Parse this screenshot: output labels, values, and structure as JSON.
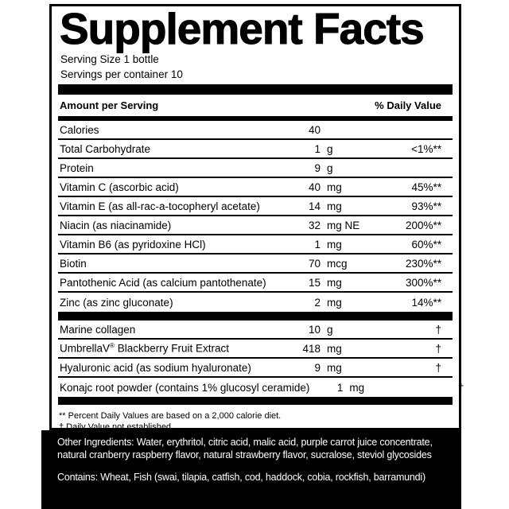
{
  "label": {
    "title": "Supplement Facts",
    "serving_size": "Serving Size 1 bottle",
    "servings_per_container": "Servings per container 10",
    "column_headers": {
      "left": "Amount per Serving",
      "right": "% Daily Value"
    },
    "rows": [
      {
        "name": "Calories",
        "amount": "40",
        "unit": "",
        "dv": ""
      },
      {
        "name": "Total Carbohydrate",
        "amount": "1",
        "unit": "g",
        "dv": "<1%**"
      },
      {
        "name": "Protein",
        "amount": "9",
        "unit": "g",
        "dv": ""
      },
      {
        "name": "Vitamin C (ascorbic acid)",
        "amount": "40",
        "unit": "mg",
        "dv": "45%**"
      },
      {
        "name": "Vitamin E (as all-rac-a-tocopheryl acetate)",
        "amount": "14",
        "unit": "mg",
        "dv": "93%**"
      },
      {
        "name": "Niacin (as niacinamide)",
        "amount": "32",
        "unit": "mg NE",
        "dv": "200%**"
      },
      {
        "name": "Vitamin B6 (as pyridoxine HCl)",
        "amount": "1",
        "unit": "mg",
        "dv": "60%**"
      },
      {
        "name": "Biotin",
        "amount": "70",
        "unit": "mcg",
        "dv": "230%**"
      },
      {
        "name": "Pantothenic Acid (as calcium pantothenate)",
        "amount": "15",
        "unit": "mg",
        "dv": "300%**"
      },
      {
        "name": "Zinc (as zinc gluconate)",
        "amount": "2",
        "unit": "mg",
        "dv": "14%**"
      }
    ],
    "rows2": [
      {
        "name": "Marine collagen",
        "amount": "10",
        "unit": "g",
        "dv": "†"
      },
      {
        "name_brand": "UmbrellaV",
        "name_mark": "®",
        "name_rest": " Blackberry Fruit Extract",
        "amount": "418",
        "unit": "mg",
        "dv": "†"
      },
      {
        "name": "Hyaluronic acid (as sodium hyaluronate)",
        "amount": "9",
        "unit": "mg",
        "dv": "†"
      },
      {
        "name": "Konajc root powder (contains 1% glucosyl ceramide)",
        "amount": "1",
        "unit": "mg",
        "dv": "†"
      }
    ],
    "footnotes": [
      "** Percent Daily Values are based on a 2,000 calorie diet.",
      "† Daily Value not established."
    ]
  },
  "bottom_panel": {
    "other_ingredients": "Other Ingredients: Water, erythritol, citric acid, malic acid, purple carrot juice concentrate, natural cranberry raspberry flavor, natural strawberry flavor, sucralose, steviol glycosides",
    "contains": "Contains: Wheat, Fish (swai, tilapia, catfish, cod, haddock, cobia, rockfish, barramundi)"
  },
  "colors": {
    "ink": "#000000",
    "paper": "#ffffff",
    "band_bg": "#000000",
    "band_text": "#ffffff"
  }
}
